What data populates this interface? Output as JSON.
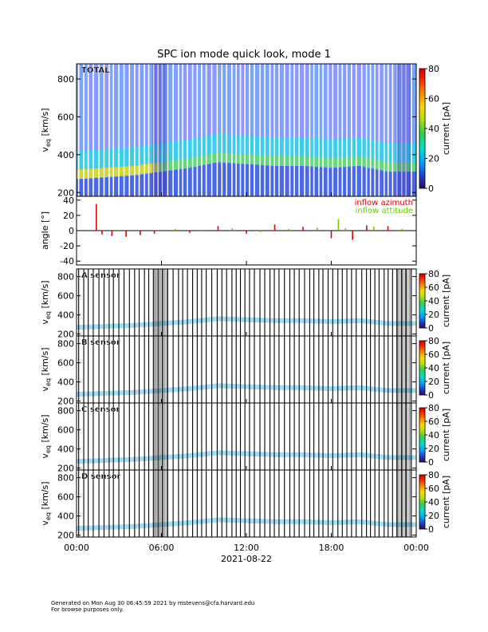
{
  "page": {
    "title": "SPC ion mode quick look, mode 1",
    "footer_line1": "Generated on Mon Aug 30 06:45:59 2021 by mstevens@cfa.harvard.edu",
    "footer_line2": "For browse purposes only."
  },
  "chart_data": [
    {
      "type": "heatmap",
      "panel": "TOTAL",
      "ylabel": "v_eq [km/s]",
      "ylim": [
        180,
        880
      ],
      "yticks": [
        200,
        400,
        600,
        800
      ],
      "xticks": [
        "00:00",
        "06:00",
        "12:00",
        "18:00",
        "00:00"
      ],
      "xlabel": "2021-08-22",
      "colorbar": {
        "label": "current [pA]",
        "range": [
          0,
          80
        ],
        "ticks": [
          0,
          20,
          40,
          60,
          80
        ]
      },
      "velocity_core_kms": [
        {
          "hour": 0,
          "v": 300
        },
        {
          "hour": 2,
          "v": 310
        },
        {
          "hour": 4,
          "v": 320
        },
        {
          "hour": 6,
          "v": 340
        },
        {
          "hour": 8,
          "v": 360
        },
        {
          "hour": 10,
          "v": 390
        },
        {
          "hour": 12,
          "v": 380
        },
        {
          "hour": 14,
          "v": 370
        },
        {
          "hour": 16,
          "v": 370
        },
        {
          "hour": 18,
          "v": 360
        },
        {
          "hour": 20,
          "v": 370
        },
        {
          "hour": 22,
          "v": 340
        }
      ]
    },
    {
      "type": "scatter",
      "panel": "angle",
      "ylabel": "angle [°]",
      "ylim": [
        -45,
        45
      ],
      "yticks": [
        -40,
        -20,
        0,
        20,
        40
      ],
      "legend_position": "top-right",
      "series": [
        {
          "name": "inflow azimuth",
          "color": "#e00000",
          "points": [
            [
              1.4,
              35
            ],
            [
              1.8,
              -5
            ],
            [
              2.5,
              -7
            ],
            [
              3.5,
              -8
            ],
            [
              4.5,
              -6
            ],
            [
              5.5,
              -4
            ],
            [
              8,
              -3
            ],
            [
              10,
              6
            ],
            [
              12,
              -4
            ],
            [
              14,
              8
            ],
            [
              16,
              5
            ],
            [
              18,
              -10
            ],
            [
              19.5,
              -12
            ],
            [
              20.5,
              7
            ],
            [
              22,
              6
            ]
          ]
        },
        {
          "name": "inflow attitude",
          "color": "#66cc00",
          "points": [
            [
              1,
              0
            ],
            [
              3,
              1
            ],
            [
              5,
              0
            ],
            [
              7,
              2
            ],
            [
              9,
              1
            ],
            [
              11,
              3
            ],
            [
              13,
              -2
            ],
            [
              15,
              2
            ],
            [
              17,
              4
            ],
            [
              18.5,
              15
            ],
            [
              19,
              3
            ],
            [
              21,
              5
            ],
            [
              23,
              2
            ]
          ]
        }
      ]
    },
    {
      "type": "heatmap",
      "panel": "A sensor",
      "ylabel": "v_eq [km/s]",
      "ylim": [
        180,
        880
      ],
      "yticks": [
        200,
        400,
        600,
        800
      ],
      "colorbar": {
        "label": "current [pA]",
        "range": [
          0,
          80
        ],
        "ticks": [
          0,
          20,
          40,
          60,
          80
        ]
      }
    },
    {
      "type": "heatmap",
      "panel": "B sensor",
      "ylabel": "v_eq [km/s]",
      "ylim": [
        180,
        880
      ],
      "yticks": [
        200,
        400,
        600,
        800
      ],
      "colorbar": {
        "label": "current [pA]",
        "range": [
          0,
          80
        ],
        "ticks": [
          0,
          20,
          40,
          60,
          80
        ]
      }
    },
    {
      "type": "heatmap",
      "panel": "C sensor",
      "ylabel": "v_eq [km/s]",
      "ylim": [
        180,
        880
      ],
      "yticks": [
        200,
        400,
        600,
        800
      ],
      "colorbar": {
        "label": "current [pA]",
        "range": [
          0,
          80
        ],
        "ticks": [
          0,
          20,
          40,
          60,
          80
        ]
      }
    },
    {
      "type": "heatmap",
      "panel": "D sensor",
      "ylabel": "v_eq [km/s]",
      "ylim": [
        180,
        880
      ],
      "yticks": [
        200,
        400,
        600,
        800
      ],
      "colorbar": {
        "label": "current [pA]",
        "range": [
          0,
          80
        ],
        "ticks": [
          0,
          20,
          40,
          60,
          80
        ]
      },
      "xticks": [
        "00:00",
        "06:00",
        "12:00",
        "18:00",
        "00:00"
      ],
      "xlabel": "2021-08-22"
    }
  ]
}
